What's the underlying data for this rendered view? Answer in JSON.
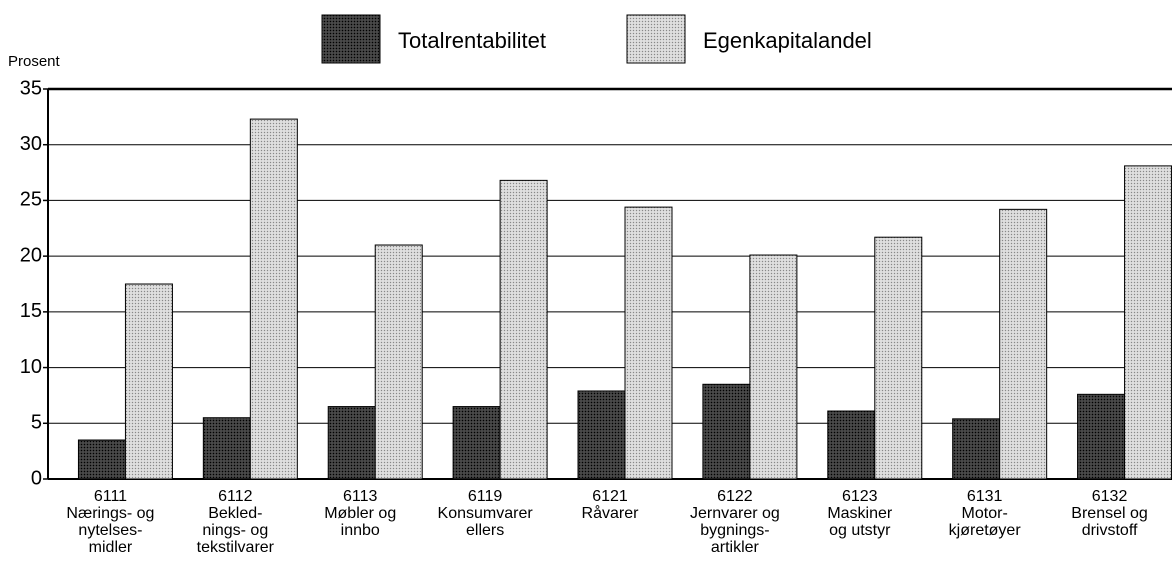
{
  "chart_data": {
    "type": "bar",
    "y_label": "Prosent",
    "categories": [
      [
        "6111",
        "Nærings- og",
        "nytelses-",
        "midler"
      ],
      [
        "6112",
        "Bekled-",
        "nings- og",
        "tekstilvarer"
      ],
      [
        "6113",
        "Møbler og",
        "innbo"
      ],
      [
        "6119",
        "Konsumvarer",
        "ellers"
      ],
      [
        "6121",
        "Råvarer"
      ],
      [
        "6122",
        "Jernvarer og",
        "bygnings-",
        "artikler"
      ],
      [
        "6123",
        "Maskiner",
        "og utstyr"
      ],
      [
        "6131",
        "Motor-",
        "kjøretøyer"
      ],
      [
        "6132",
        "Brensel og",
        "drivstoff"
      ]
    ],
    "series": [
      {
        "name": "Totalrentabilitet",
        "color": "#3a3a3a",
        "values": [
          3.5,
          5.5,
          6.5,
          6.5,
          7.9,
          8.5,
          6.1,
          5.4,
          7.6
        ]
      },
      {
        "name": "Egenkapitalandel",
        "color": "#d4d4d4",
        "values": [
          17.5,
          32.3,
          21,
          26.8,
          24.4,
          20.1,
          21.7,
          24.2,
          28.1
        ]
      }
    ],
    "ylim": [
      0,
      35
    ],
    "yticks": [
      0,
      5,
      10,
      15,
      20,
      25,
      30,
      35
    ],
    "grid": true
  }
}
